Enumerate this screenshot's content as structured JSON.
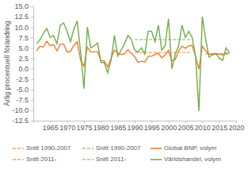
{
  "chart_data": {
    "type": "line",
    "y_label": "Årlig procentuell förändring",
    "x": [
      1961,
      1962,
      1963,
      1964,
      1965,
      1966,
      1967,
      1968,
      1969,
      1970,
      1971,
      1972,
      1973,
      1974,
      1975,
      1976,
      1977,
      1978,
      1979,
      1980,
      1981,
      1982,
      1983,
      1984,
      1985,
      1986,
      1987,
      1988,
      1989,
      1990,
      1991,
      1992,
      1993,
      1994,
      1995,
      1996,
      1997,
      1998,
      1999,
      2000,
      2001,
      2002,
      2003,
      2004,
      2005,
      2006,
      2007,
      2008,
      2009,
      2010,
      2011,
      2012,
      2013,
      2014,
      2015,
      2016,
      2017,
      2018
    ],
    "xlim": [
      1960,
      2020
    ],
    "xticks": [
      1965,
      1970,
      1975,
      1980,
      1985,
      1990,
      1995,
      2000,
      2005,
      2010,
      2015,
      2020
    ],
    "ylim": [
      -12.5,
      15
    ],
    "yticks": [
      {
        "value": -12.5,
        "label": "-12.5"
      },
      {
        "value": -10,
        "label": "-10.0"
      },
      {
        "value": -7.5,
        "label": "-7.5"
      },
      {
        "value": -5,
        "label": "-5.0"
      },
      {
        "value": -2.5,
        "label": "-2.5"
      },
      {
        "value": 0,
        "label": "0.0"
      },
      {
        "value": 2.5,
        "label": "2.5"
      },
      {
        "value": 5,
        "label": "5.0"
      },
      {
        "value": 7.5,
        "label": "7.5"
      },
      {
        "value": 10,
        "label": "10.0"
      },
      {
        "value": 12.5,
        "label": "12.5"
      },
      {
        "value": 15,
        "label": "15.0"
      }
    ],
    "grid": false,
    "legend": "bottom",
    "series": [
      {
        "name": "Snitt 1990-2007",
        "color": "#f4a46a",
        "line_style": "dashed",
        "values": [
          null,
          null,
          null,
          null,
          null,
          null,
          null,
          null,
          null,
          null,
          null,
          null,
          null,
          null,
          null,
          null,
          null,
          null,
          null,
          null,
          null,
          null,
          null,
          null,
          null,
          null,
          null,
          null,
          null,
          3.9,
          3.9,
          3.9,
          3.9,
          3.9,
          3.9,
          3.9,
          3.9,
          3.9,
          3.9,
          3.9,
          3.9,
          3.9,
          3.9,
          3.9,
          3.9,
          3.9,
          3.9,
          null,
          null,
          null,
          null,
          null,
          null,
          null,
          null,
          null,
          null,
          null
        ]
      },
      {
        "name": "Snitt 2011-",
        "color": "#f4a46a",
        "line_style": "dashed",
        "values": [
          null,
          null,
          null,
          null,
          null,
          null,
          null,
          null,
          null,
          null,
          null,
          null,
          null,
          null,
          null,
          null,
          null,
          null,
          null,
          null,
          null,
          null,
          null,
          null,
          null,
          null,
          null,
          null,
          null,
          null,
          null,
          null,
          null,
          null,
          null,
          null,
          null,
          null,
          null,
          null,
          null,
          null,
          null,
          null,
          null,
          null,
          null,
          null,
          null,
          null,
          3.6,
          3.6,
          3.6,
          3.6,
          3.6,
          3.6,
          3.6,
          3.6
        ]
      },
      {
        "name": "Snitt 1990-2007",
        "color": "#9ccc7e",
        "line_style": "dashed",
        "values": [
          null,
          null,
          null,
          null,
          null,
          null,
          null,
          null,
          null,
          null,
          null,
          null,
          null,
          null,
          null,
          null,
          null,
          null,
          null,
          null,
          null,
          null,
          null,
          null,
          null,
          null,
          null,
          null,
          null,
          7,
          7,
          7,
          7,
          7,
          7,
          7,
          7,
          7,
          7,
          7,
          7,
          7,
          7,
          7,
          7,
          7,
          7,
          null,
          null,
          null,
          null,
          null,
          null,
          null,
          null,
          null,
          null,
          null
        ]
      },
      {
        "name": "Snitt 2011-",
        "color": "#9ccc7e",
        "line_style": "dashed",
        "values": [
          null,
          null,
          null,
          null,
          null,
          null,
          null,
          null,
          null,
          null,
          null,
          null,
          null,
          null,
          null,
          null,
          null,
          null,
          null,
          null,
          null,
          null,
          null,
          null,
          null,
          null,
          null,
          null,
          null,
          null,
          null,
          null,
          null,
          null,
          null,
          null,
          null,
          null,
          null,
          null,
          null,
          null,
          null,
          null,
          null,
          null,
          null,
          null,
          null,
          null,
          3.5,
          3.5,
          3.5,
          3.5,
          3.5,
          3.5,
          3.5,
          3.5
        ]
      },
      {
        "name": "Global BNP, volym",
        "color": "#ed7d31",
        "line_style": "solid",
        "values": [
          4.3,
          5.4,
          5.2,
          6.6,
          5.5,
          5.8,
          4.3,
          5.9,
          5.9,
          4,
          4.2,
          5.6,
          6.5,
          2,
          0.6,
          5.2,
          4,
          4.1,
          4.1,
          1.9,
          1.9,
          0.4,
          2.5,
          4.5,
          3.7,
          3.4,
          3.6,
          4.6,
          3.7,
          2.9,
          1.5,
          1.8,
          1.6,
          3,
          3,
          3.4,
          3.7,
          2.6,
          3.3,
          4.4,
          1.9,
          2.2,
          4.3,
          5.4,
          4.9,
          5.5,
          5.6,
          3,
          -0.1,
          5.4,
          4.3,
          3.5,
          3.5,
          3.6,
          3.5,
          3.3,
          3.8,
          3.6
        ]
      },
      {
        "name": "Världshandel, volym",
        "color": "#70ad47",
        "line_style": "solid",
        "values": [
          6,
          7,
          8.5,
          9.7,
          7.5,
          8,
          6,
          10.5,
          11,
          9,
          6.5,
          9.5,
          11.5,
          4,
          -4.8,
          10,
          5,
          5.5,
          6.2,
          1.5,
          1.5,
          -1,
          2,
          8,
          3,
          4.5,
          6,
          8,
          7,
          4.5,
          4,
          5,
          3.5,
          9,
          9,
          6.5,
          10.5,
          4.5,
          5.5,
          12,
          0,
          3.5,
          5.5,
          10.5,
          7.5,
          9,
          7.5,
          3,
          -10.2,
          12.5,
          7,
          2.8,
          3.3,
          3.7,
          2.5,
          2,
          5,
          3.8
        ]
      }
    ]
  }
}
